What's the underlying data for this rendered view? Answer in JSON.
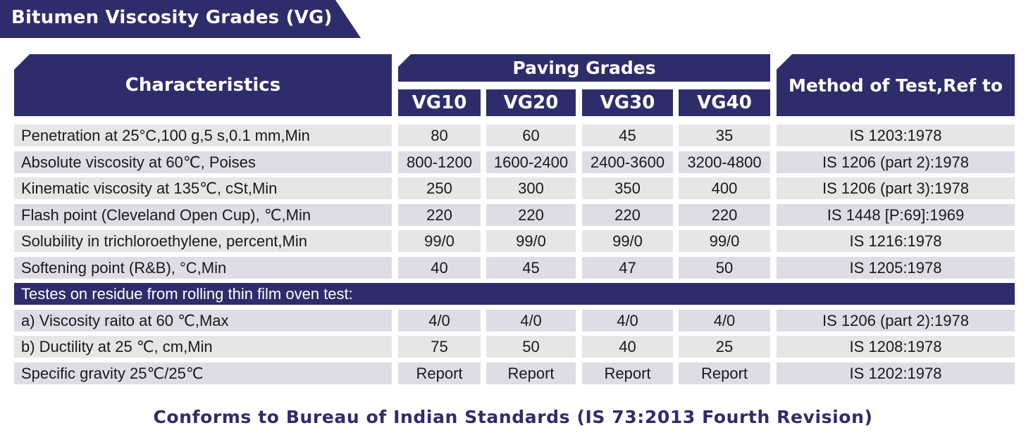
{
  "title": "Bitumen Viscosity Grades (VG)",
  "header": {
    "characteristics": "Characteristics",
    "paving_grades": "Paving Grades",
    "grades": [
      "VG10",
      "VG20",
      "VG30",
      "VG40"
    ],
    "method": "Method of Test,Ref to"
  },
  "rows": [
    {
      "characteristic": "Penetration at 25°C,100 g,5 s,0.1 mm,Min",
      "values": [
        "80",
        "60",
        "45",
        "35"
      ],
      "method": "IS 1203:1978"
    },
    {
      "characteristic": "Absolute viscosity at 60℃, Poises",
      "values": [
        "800-1200",
        "1600-2400",
        "2400-3600",
        "3200-4800"
      ],
      "method": "IS 1206 (part 2):1978"
    },
    {
      "characteristic": "Kinematic viscosity at 135℃, cSt,Min",
      "values": [
        "250",
        "300",
        "350",
        "400"
      ],
      "method": "IS 1206 (part 3):1978"
    },
    {
      "characteristic": "Flash point (Cleveland Open Cup), ℃,Min",
      "values": [
        "220",
        "220",
        "220",
        "220"
      ],
      "method": "IS 1448 [P:69]:1969"
    },
    {
      "characteristic": "Solubility in trichloroethylene, percent,Min",
      "values": [
        "99/0",
        "99/0",
        "99/0",
        "99/0"
      ],
      "method": "IS 1216:1978"
    },
    {
      "characteristic": "Softening point (R&B), °C,Min",
      "values": [
        "40",
        "45",
        "47",
        "50"
      ],
      "method": "IS 1205:1978"
    }
  ],
  "residue_heading": "Testes on residue from rolling thin film oven test:",
  "residue_rows": [
    {
      "characteristic": "a) Viscosity raito at 60 ℃,Max",
      "values": [
        "4/0",
        "4/0",
        "4/0",
        "4/0"
      ],
      "method": "IS 1206 (part 2):1978"
    },
    {
      "characteristic": "b) Ductility at 25 ℃, cm,Min",
      "values": [
        "75",
        "50",
        "40",
        "25"
      ],
      "method": "IS 1208:1978"
    },
    {
      "characteristic": "Specific gravity 25℃/25℃",
      "values": [
        "Report",
        "Report",
        "Report",
        "Report"
      ],
      "method": "IS 1202:1978"
    }
  ],
  "footer": "Conforms to Bureau of Indian Standards (IS 73:2013 Fourth Revision)"
}
